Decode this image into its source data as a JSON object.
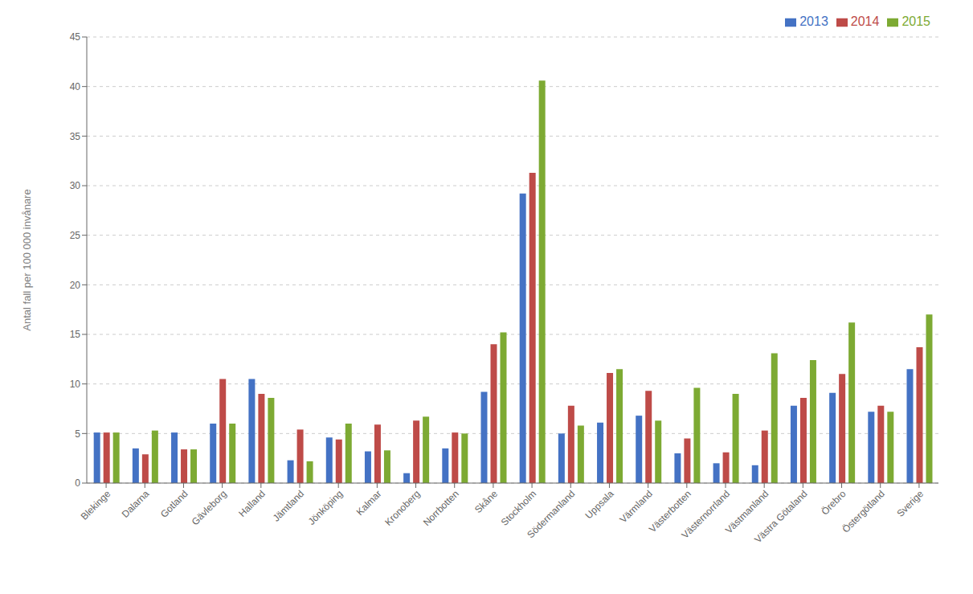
{
  "chart_data": {
    "type": "bar",
    "categories": [
      "Blekinge",
      "Dalarna",
      "Gotland",
      "Gävleborg",
      "Halland",
      "Jämtland",
      "Jönköping",
      "Kalmar",
      "Kronoberg",
      "Norrbotten",
      "Skåne",
      "Stockholm",
      "Södermanland",
      "Uppsala",
      "Värmland",
      "Västerbotten",
      "Västernorrland",
      "Västmanland",
      "Västra Götaland",
      "Örebro",
      "Östergötland",
      "Sverige"
    ],
    "series": [
      {
        "name": "2013",
        "color": "#4472C4",
        "values": [
          5.1,
          3.5,
          5.1,
          6.0,
          10.5,
          2.3,
          4.6,
          3.2,
          1.0,
          3.5,
          9.2,
          29.2,
          5.0,
          6.1,
          6.8,
          3.0,
          2.0,
          1.8,
          7.8,
          9.1,
          7.2,
          11.5
        ]
      },
      {
        "name": "2014",
        "color": "#BE4B48",
        "values": [
          5.1,
          2.9,
          3.4,
          10.5,
          9.0,
          5.4,
          4.4,
          5.9,
          6.3,
          5.1,
          14.0,
          31.3,
          7.8,
          11.1,
          9.3,
          4.5,
          3.1,
          5.3,
          8.6,
          11.0,
          7.8,
          13.7
        ]
      },
      {
        "name": "2015",
        "color": "#7DAA33",
        "values": [
          5.1,
          5.3,
          3.4,
          6.0,
          8.6,
          2.2,
          6.0,
          3.3,
          6.7,
          5.0,
          15.2,
          40.6,
          5.8,
          11.5,
          6.3,
          9.6,
          9.0,
          13.1,
          12.4,
          16.2,
          7.2,
          17.0
        ]
      }
    ],
    "ylabel": "Antal fall per 100 000 invånare",
    "ylim": [
      0,
      45
    ],
    "yticks": [
      0,
      5,
      10,
      15,
      20,
      25,
      30,
      35,
      40,
      45
    ],
    "grid": true,
    "legend": "upper right"
  }
}
